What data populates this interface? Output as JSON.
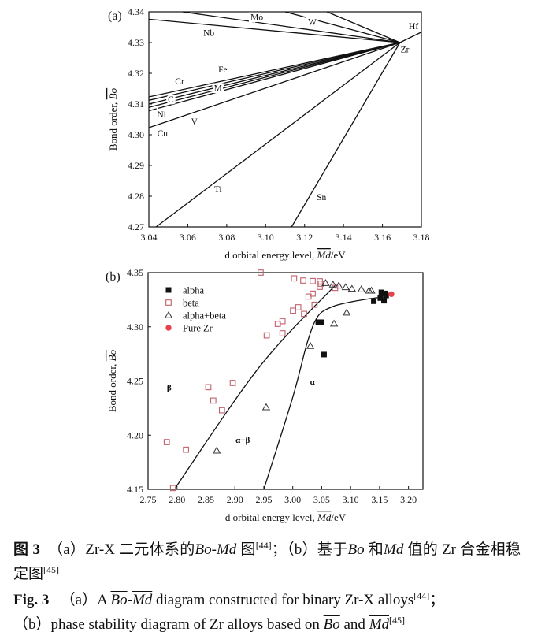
{
  "chart_data": [
    {
      "type": "line",
      "panel_label": "(a)",
      "xlabel_prefix": "d orbital energy level, ",
      "xlabel_symbol": "Md",
      "xlabel_suffix": "/eV",
      "ylabel_prefix": "Bond order, ",
      "ylabel_symbol": "Bo",
      "xlim": [
        3.04,
        3.18
      ],
      "ylim": [
        4.27,
        4.34
      ],
      "xticks": [
        "3.04",
        "3.06",
        "3.08",
        "3.10",
        "3.12",
        "3.14",
        "3.16",
        "3.18"
      ],
      "yticks": [
        "4.27",
        "4.28",
        "4.29",
        "4.30",
        "4.31",
        "4.32",
        "4.33",
        "4.34"
      ],
      "grid": false,
      "lines": [
        {
          "from": [
            3.04,
            4.3376
          ],
          "to": [
            3.169,
            4.33
          ]
        },
        {
          "from": [
            3.0573,
            4.34
          ],
          "to": [
            3.169,
            4.33
          ]
        },
        {
          "from": [
            3.11,
            4.34
          ],
          "to": [
            3.169,
            4.33
          ]
        },
        {
          "from": [
            3.1315,
            4.34
          ],
          "to": [
            3.169,
            4.33
          ]
        },
        {
          "from": [
            3.169,
            4.33
          ],
          "to": [
            3.18,
            4.3334
          ]
        },
        {
          "from": [
            3.04,
            4.3123
          ],
          "to": [
            3.169,
            4.33
          ]
        },
        {
          "from": [
            3.04,
            4.3112
          ],
          "to": [
            3.169,
            4.33
          ]
        },
        {
          "from": [
            3.04,
            4.31
          ],
          "to": [
            3.169,
            4.33
          ]
        },
        {
          "from": [
            3.04,
            4.3089
          ],
          "to": [
            3.169,
            4.33
          ]
        },
        {
          "from": [
            3.04,
            4.3078
          ],
          "to": [
            3.169,
            4.33
          ]
        },
        {
          "from": [
            3.04,
            4.3023
          ],
          "to": [
            3.169,
            4.33
          ]
        },
        {
          "from": [
            3.0437,
            4.27
          ],
          "to": [
            3.169,
            4.33
          ]
        },
        {
          "from": [
            3.1133,
            4.27
          ],
          "to": [
            3.169,
            4.33
          ]
        }
      ],
      "annotations": [
        {
          "text": "Mo",
          "x": 3.0955,
          "y": 4.3383
        },
        {
          "text": "W",
          "x": 3.124,
          "y": 4.3368
        },
        {
          "text": "Nb",
          "x": 3.0708,
          "y": 4.3332
        },
        {
          "text": "Hf",
          "x": 3.176,
          "y": 4.3354
        },
        {
          "text": "Zr",
          "x": 3.1715,
          "y": 4.3278
        },
        {
          "text": "Fe",
          "x": 3.078,
          "y": 4.3213
        },
        {
          "text": "Cr",
          "x": 3.0558,
          "y": 4.3175
        },
        {
          "text": "M",
          "x": 3.0755,
          "y": 4.3152
        },
        {
          "text": "C",
          "x": 3.0513,
          "y": 4.3116
        },
        {
          "text": "Ni",
          "x": 3.0465,
          "y": 4.3067
        },
        {
          "text": "V",
          "x": 3.0634,
          "y": 4.3044
        },
        {
          "text": "Cu",
          "x": 3.047,
          "y": 4.3005
        },
        {
          "text": "Ti",
          "x": 3.0755,
          "y": 4.2823
        },
        {
          "text": "Sn",
          "x": 3.1287,
          "y": 4.2797
        }
      ]
    },
    {
      "type": "scatter",
      "panel_label": "(b)",
      "xlabel_prefix": "d orbital energy level, ",
      "xlabel_symbol": "Md",
      "xlabel_suffix": "/eV",
      "ylabel_prefix": "Bond order, ",
      "ylabel_symbol": "Bo",
      "xlim": [
        2.75,
        3.225
      ],
      "ylim": [
        4.15,
        4.35
      ],
      "xticks": [
        "2.75",
        "2.80",
        "2.85",
        "2.90",
        "2.95",
        "3.00",
        "3.05",
        "3.10",
        "3.15",
        "3.20"
      ],
      "yticks": [
        "4.15",
        "4.20",
        "4.25",
        "4.30",
        "4.35"
      ],
      "grid": false,
      "legend_position": "top-left",
      "series": [
        {
          "name": "alpha",
          "marker": "filled-square",
          "color": "#111111",
          "points": [
            [
              3.1532,
              4.3318
            ],
            [
              3.1591,
              4.3308
            ],
            [
              3.1614,
              4.3289
            ],
            [
              3.1514,
              4.3265
            ],
            [
              3.1577,
              4.3241
            ],
            [
              3.14,
              4.3236
            ],
            [
              3.0441,
              4.3042
            ],
            [
              3.0495,
              4.3042
            ],
            [
              3.0541,
              4.2744
            ]
          ]
        },
        {
          "name": "beta",
          "marker": "open-square",
          "color": "#c0606a",
          "points": [
            [
              2.9445,
              4.35
            ],
            [
              3.0023,
              4.3447
            ],
            [
              3.0182,
              4.3427
            ],
            [
              3.0345,
              4.3422
            ],
            [
              3.0468,
              4.342
            ],
            [
              3.0486,
              4.3398
            ],
            [
              3.0468,
              4.3369
            ],
            [
              3.0732,
              4.3359
            ],
            [
              3.0345,
              4.3306
            ],
            [
              3.0273,
              4.3279
            ],
            [
              3.0377,
              4.3204
            ],
            [
              3.0095,
              4.318
            ],
            [
              3.0005,
              4.3149
            ],
            [
              3.0195,
              4.3119
            ],
            [
              2.9823,
              4.3052
            ],
            [
              2.9741,
              4.3027
            ],
            [
              2.955,
              4.2921
            ],
            [
              2.9823,
              4.294
            ],
            [
              2.8541,
              4.2443
            ],
            [
              2.8964,
              4.2482
            ],
            [
              2.8627,
              4.2319
            ],
            [
              2.8777,
              4.223
            ],
            [
              2.7823,
              4.1936
            ],
            [
              2.8155,
              4.1866
            ],
            [
              2.7932,
              4.1512
            ]
          ]
        },
        {
          "name": "alpha+beta",
          "marker": "open-triangle",
          "color": "#333333",
          "points": [
            [
              3.0568,
              4.3405
            ],
            [
              3.0695,
              4.3391
            ],
            [
              3.0795,
              4.3381
            ],
            [
              3.0914,
              4.3367
            ],
            [
              3.1023,
              4.3352
            ],
            [
              3.1186,
              4.3347
            ],
            [
              3.1318,
              4.3335
            ],
            [
              3.1359,
              4.3335
            ],
            [
              3.0932,
              4.3132
            ],
            [
              3.0714,
              4.303
            ],
            [
              3.0305,
              4.2824
            ],
            [
              2.9541,
              4.2259
            ],
            [
              2.8686,
              4.1859
            ]
          ]
        },
        {
          "name": "Pure Zr",
          "marker": "filled-circle",
          "color": "#e8404c",
          "points": [
            [
              3.1705,
              4.3301
            ]
          ]
        }
      ],
      "boundaries": [
        [
          [
            2.7968,
            4.1512
          ],
          [
            2.9432,
            4.2635
          ],
          [
            3.0727,
            4.3379
          ]
        ],
        [
          [
            2.95,
            4.15
          ],
          [
            3.0,
            4.235
          ],
          [
            3.025,
            4.2853
          ],
          [
            3.0432,
            4.3095
          ],
          [
            3.0659,
            4.318
          ],
          [
            3.0886,
            4.3216
          ],
          [
            3.125,
            4.3253
          ],
          [
            3.1614,
            4.3277
          ]
        ]
      ],
      "annotations": [
        {
          "text": "β",
          "x": 2.7864,
          "y": 4.2441
        },
        {
          "text": "α",
          "x": 3.0341,
          "y": 4.2496
        },
        {
          "text": "α+β",
          "x": 2.9136,
          "y": 4.196
        }
      ]
    }
  ],
  "caption": {
    "cn": {
      "fig": "图 3",
      "a_prefix": "（a）Zr-X 二元体系的",
      "bo": "Bo",
      "dash": "-",
      "md": "Md",
      "a_suffix": " 图",
      "ref_a": "[44]",
      "b_prefix": "；（b）基于",
      "and": " 和",
      "b_suffix": " 值的 Zr 合金相稳定图",
      "ref_b": "[45]"
    },
    "en": {
      "fig": "Fig. 3",
      "a_prefix": "（a）A ",
      "bo": "Bo",
      "dash": "-",
      "md": "Md",
      "a_suffix": " diagram constructed for binary Zr-X alloys",
      "ref_a": "[44]",
      "semicolon": "；",
      "b_prefix": "（b）phase stability diagram of Zr alloys based on ",
      "and": " and ",
      "ref_b": "[45]"
    }
  }
}
